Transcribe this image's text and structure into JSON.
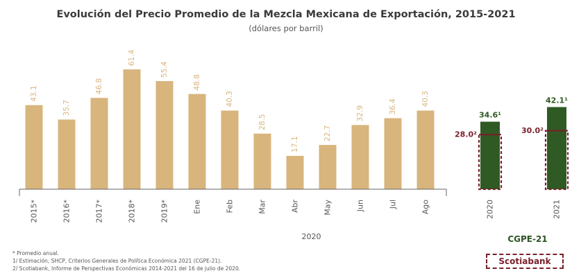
{
  "header": {
    "title": "Evolución del Precio Promedio de la Mezcla Mexicana de Exportación, 2015-2021",
    "subtitle": "(dólares por barril)"
  },
  "colors": {
    "bar": "#d8b57d",
    "forecast_bar": "#2f5a24",
    "scotiabank": "#7a1f2b",
    "value_label": "#d8b57d",
    "axis": "#666666"
  },
  "chart_data": {
    "type": "bar",
    "title": "Evolución del Precio Promedio de la Mezcla Mexicana de Exportación, 2015-2021",
    "ylabel": "(dólares por barril)",
    "ylim": [
      0,
      65
    ],
    "grid": false,
    "categories": [
      "2015*",
      "2016*",
      "2017*",
      "2018*",
      "2019*",
      "Ene",
      "Feb",
      "Mar",
      "Abr",
      "May",
      "Jun",
      "Jul",
      "Ago"
    ],
    "values": [
      43.1,
      35.7,
      46.8,
      61.4,
      55.4,
      48.8,
      40.3,
      28.5,
      17.1,
      22.7,
      32.9,
      36.4,
      40.3
    ],
    "value_labels": [
      "43.1",
      "35.7",
      "46.8",
      "61.4",
      "55.4",
      "48.8",
      "40.3",
      "28.5",
      "17.1",
      "22.7",
      "32.9",
      "36.4",
      "40.3"
    ],
    "group_label": "2020",
    "forecast": {
      "categories": [
        "2020",
        "2021"
      ],
      "shcp_values": [
        34.6,
        42.1
      ],
      "shcp_labels": [
        "34.6¹",
        "42.1¹"
      ],
      "scotiabank_values": [
        28.0,
        30.0
      ],
      "scotiabank_labels": [
        "28.0²",
        "30.0²"
      ],
      "group_label": "CGPE-21"
    }
  },
  "legend": {
    "scotiabank": "Scotiabank"
  },
  "notes": [
    "* Promedio anual.",
    "1/ Estimación, SHCP, Criterios Generales de Política Económica 2021 (CGPE-21).",
    "2/ Scotiabank, Informe de Perspectivas Económicas 2014-2021 del 16 de julio de 2020."
  ]
}
